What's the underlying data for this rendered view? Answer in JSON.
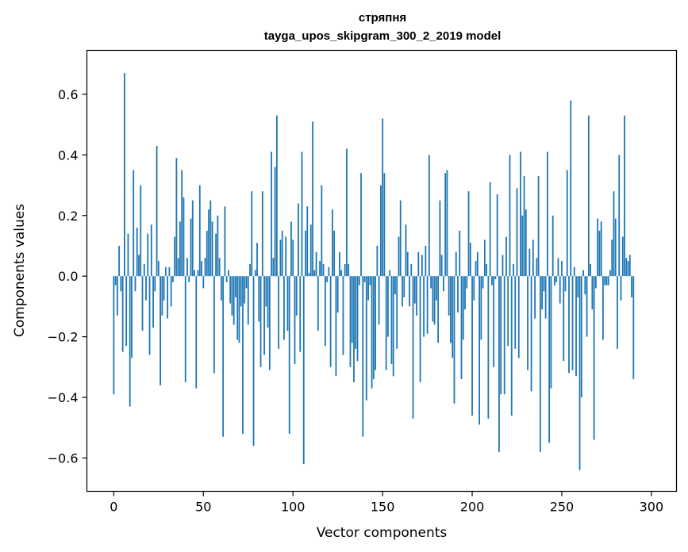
{
  "chart_data": {
    "type": "bar",
    "title_lines": [
      "стряпня",
      "tayga_upos_skipgram_300_2_2019 model"
    ],
    "xlabel": "Vector components",
    "ylabel": "Components values",
    "xlim": [
      -15,
      314
    ],
    "ylim": [
      -0.71,
      0.745
    ],
    "xticks": [
      0,
      50,
      100,
      150,
      200,
      250,
      300
    ],
    "yticks": [
      -0.6,
      -0.4,
      -0.2,
      0.0,
      0.2,
      0.4,
      0.6
    ],
    "bar_color": "#1f77b4",
    "values": [
      -0.39,
      -0.03,
      -0.13,
      0.1,
      -0.05,
      -0.25,
      0.67,
      -0.23,
      0.14,
      -0.43,
      -0.27,
      0.35,
      -0.05,
      0.16,
      0.07,
      0.3,
      -0.18,
      0.04,
      -0.08,
      0.14,
      -0.26,
      0.17,
      -0.17,
      -0.05,
      0.43,
      0.05,
      -0.36,
      -0.13,
      -0.08,
      0.03,
      -0.14,
      0.03,
      -0.1,
      -0.02,
      0.13,
      0.39,
      0.06,
      0.18,
      0.35,
      0.26,
      -0.35,
      0.06,
      -0.02,
      0.19,
      0.25,
      0.02,
      -0.37,
      0.02,
      0.3,
      0.05,
      -0.04,
      0.06,
      0.15,
      0.22,
      0.25,
      0.18,
      -0.32,
      0.14,
      0.2,
      0.06,
      -0.08,
      -0.53,
      0.23,
      -0.02,
      0.02,
      -0.09,
      -0.13,
      -0.16,
      -0.07,
      -0.21,
      -0.22,
      -0.1,
      -0.52,
      -0.09,
      -0.04,
      -0.16,
      0.04,
      0.28,
      -0.56,
      0.02,
      0.11,
      -0.15,
      -0.3,
      0.28,
      -0.26,
      -0.1,
      -0.17,
      -0.31,
      0.41,
      0.06,
      0.36,
      0.53,
      -0.24,
      0.12,
      0.15,
      -0.21,
      0.13,
      -0.18,
      -0.52,
      0.18,
      0.12,
      -0.29,
      -0.13,
      0.24,
      -0.25,
      0.41,
      -0.62,
      0.15,
      0.23,
      0.01,
      0.17,
      0.51,
      0.02,
      0.08,
      -0.18,
      0.05,
      0.3,
      0.04,
      -0.23,
      -0.02,
      0.03,
      -0.3,
      0.22,
      0.15,
      -0.33,
      -0.12,
      0.08,
      0.02,
      -0.26,
      0.04,
      0.42,
      0.04,
      -0.3,
      -0.22,
      -0.35,
      -0.24,
      -0.28,
      -0.03,
      0.34,
      -0.53,
      -0.02,
      -0.41,
      -0.08,
      -0.03,
      -0.37,
      -0.34,
      -0.31,
      0.1,
      -0.16,
      0.3,
      0.52,
      0.34,
      -0.31,
      -0.2,
      0.02,
      -0.29,
      -0.33,
      -0.06,
      -0.24,
      0.13,
      0.25,
      -0.1,
      -0.07,
      0.17,
      0.08,
      -0.1,
      0.04,
      -0.47,
      -0.09,
      -0.13,
      0.08,
      -0.35,
      0.07,
      -0.2,
      0.1,
      -0.19,
      0.4,
      -0.04,
      -0.15,
      -0.16,
      -0.08,
      -0.22,
      0.25,
      0.07,
      -0.05,
      0.34,
      0.35,
      -0.13,
      -0.22,
      -0.27,
      -0.42,
      0.08,
      -0.12,
      0.15,
      -0.34,
      -0.21,
      -0.11,
      -0.04,
      0.28,
      0.11,
      -0.46,
      -0.08,
      0.05,
      0.08,
      -0.49,
      -0.21,
      -0.04,
      0.12,
      0.04,
      -0.47,
      0.31,
      -0.03,
      -0.3,
      -0.01,
      0.27,
      -0.58,
      -0.39,
      0.07,
      -0.39,
      0.13,
      -0.23,
      0.4,
      -0.46,
      0.04,
      -0.24,
      0.29,
      -0.27,
      0.41,
      0.2,
      0.33,
      0.22,
      -0.31,
      0.09,
      -0.38,
      0.12,
      -0.14,
      0.06,
      0.33,
      -0.58,
      -0.11,
      -0.05,
      -0.14,
      0.41,
      -0.55,
      -0.37,
      0.2,
      -0.03,
      -0.02,
      0.06,
      -0.09,
      0.05,
      -0.28,
      -0.05,
      0.35,
      -0.32,
      0.58,
      -0.31,
      0.03,
      -0.33,
      -0.07,
      -0.64,
      -0.4,
      0.02,
      -0.06,
      -0.2,
      0.53,
      0.04,
      -0.11,
      -0.54,
      -0.04,
      0.19,
      0.15,
      0.18,
      -0.21,
      -0.03,
      -0.03,
      -0.03,
      0.02,
      0.12,
      0.28,
      0.19,
      -0.24,
      0.4,
      -0.08,
      0.13,
      0.53,
      0.06,
      0.05,
      0.07,
      -0.07,
      -0.34
    ]
  }
}
